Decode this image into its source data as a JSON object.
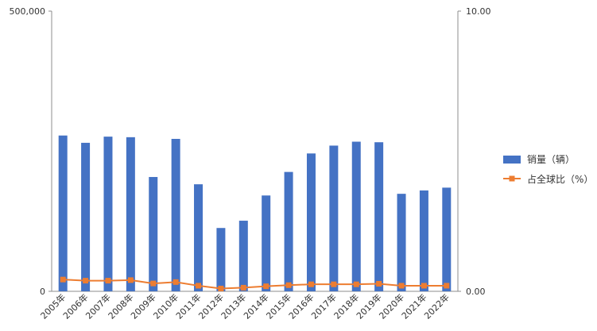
{
  "chart_data": {
    "type": "bar+line",
    "categories": [
      "2005年",
      "2006年",
      "2007年",
      "2008年",
      "2009年",
      "2010年",
      "2011年",
      "2012年",
      "2013年",
      "2014年",
      "2015年",
      "2016年",
      "2017年",
      "2018年",
      "2019年",
      "2020年",
      "2021年",
      "2022年"
    ],
    "series": [
      {
        "name": "销量（辆）",
        "type": "bar",
        "axis": "left",
        "color": "#4472c4",
        "values": [
          278000,
          265000,
          276000,
          275000,
          204000,
          272000,
          191000,
          113000,
          126000,
          171000,
          213000,
          246000,
          260000,
          267000,
          266000,
          174000,
          180000,
          185000
        ]
      },
      {
        "name": "占全球比（%）",
        "type": "line",
        "axis": "right",
        "color": "#ed7d31",
        "values": [
          0.42,
          0.38,
          0.38,
          0.4,
          0.28,
          0.33,
          0.2,
          0.1,
          0.13,
          0.18,
          0.22,
          0.25,
          0.25,
          0.25,
          0.27,
          0.2,
          0.2,
          0.2
        ]
      }
    ],
    "y_left": {
      "ticks": [
        "0",
        "500,000"
      ],
      "range": [
        0,
        500000
      ]
    },
    "y_right": {
      "ticks": [
        "0.00",
        "10.00"
      ],
      "range": [
        0,
        10
      ]
    },
    "grid": false,
    "legend_position": "right"
  }
}
